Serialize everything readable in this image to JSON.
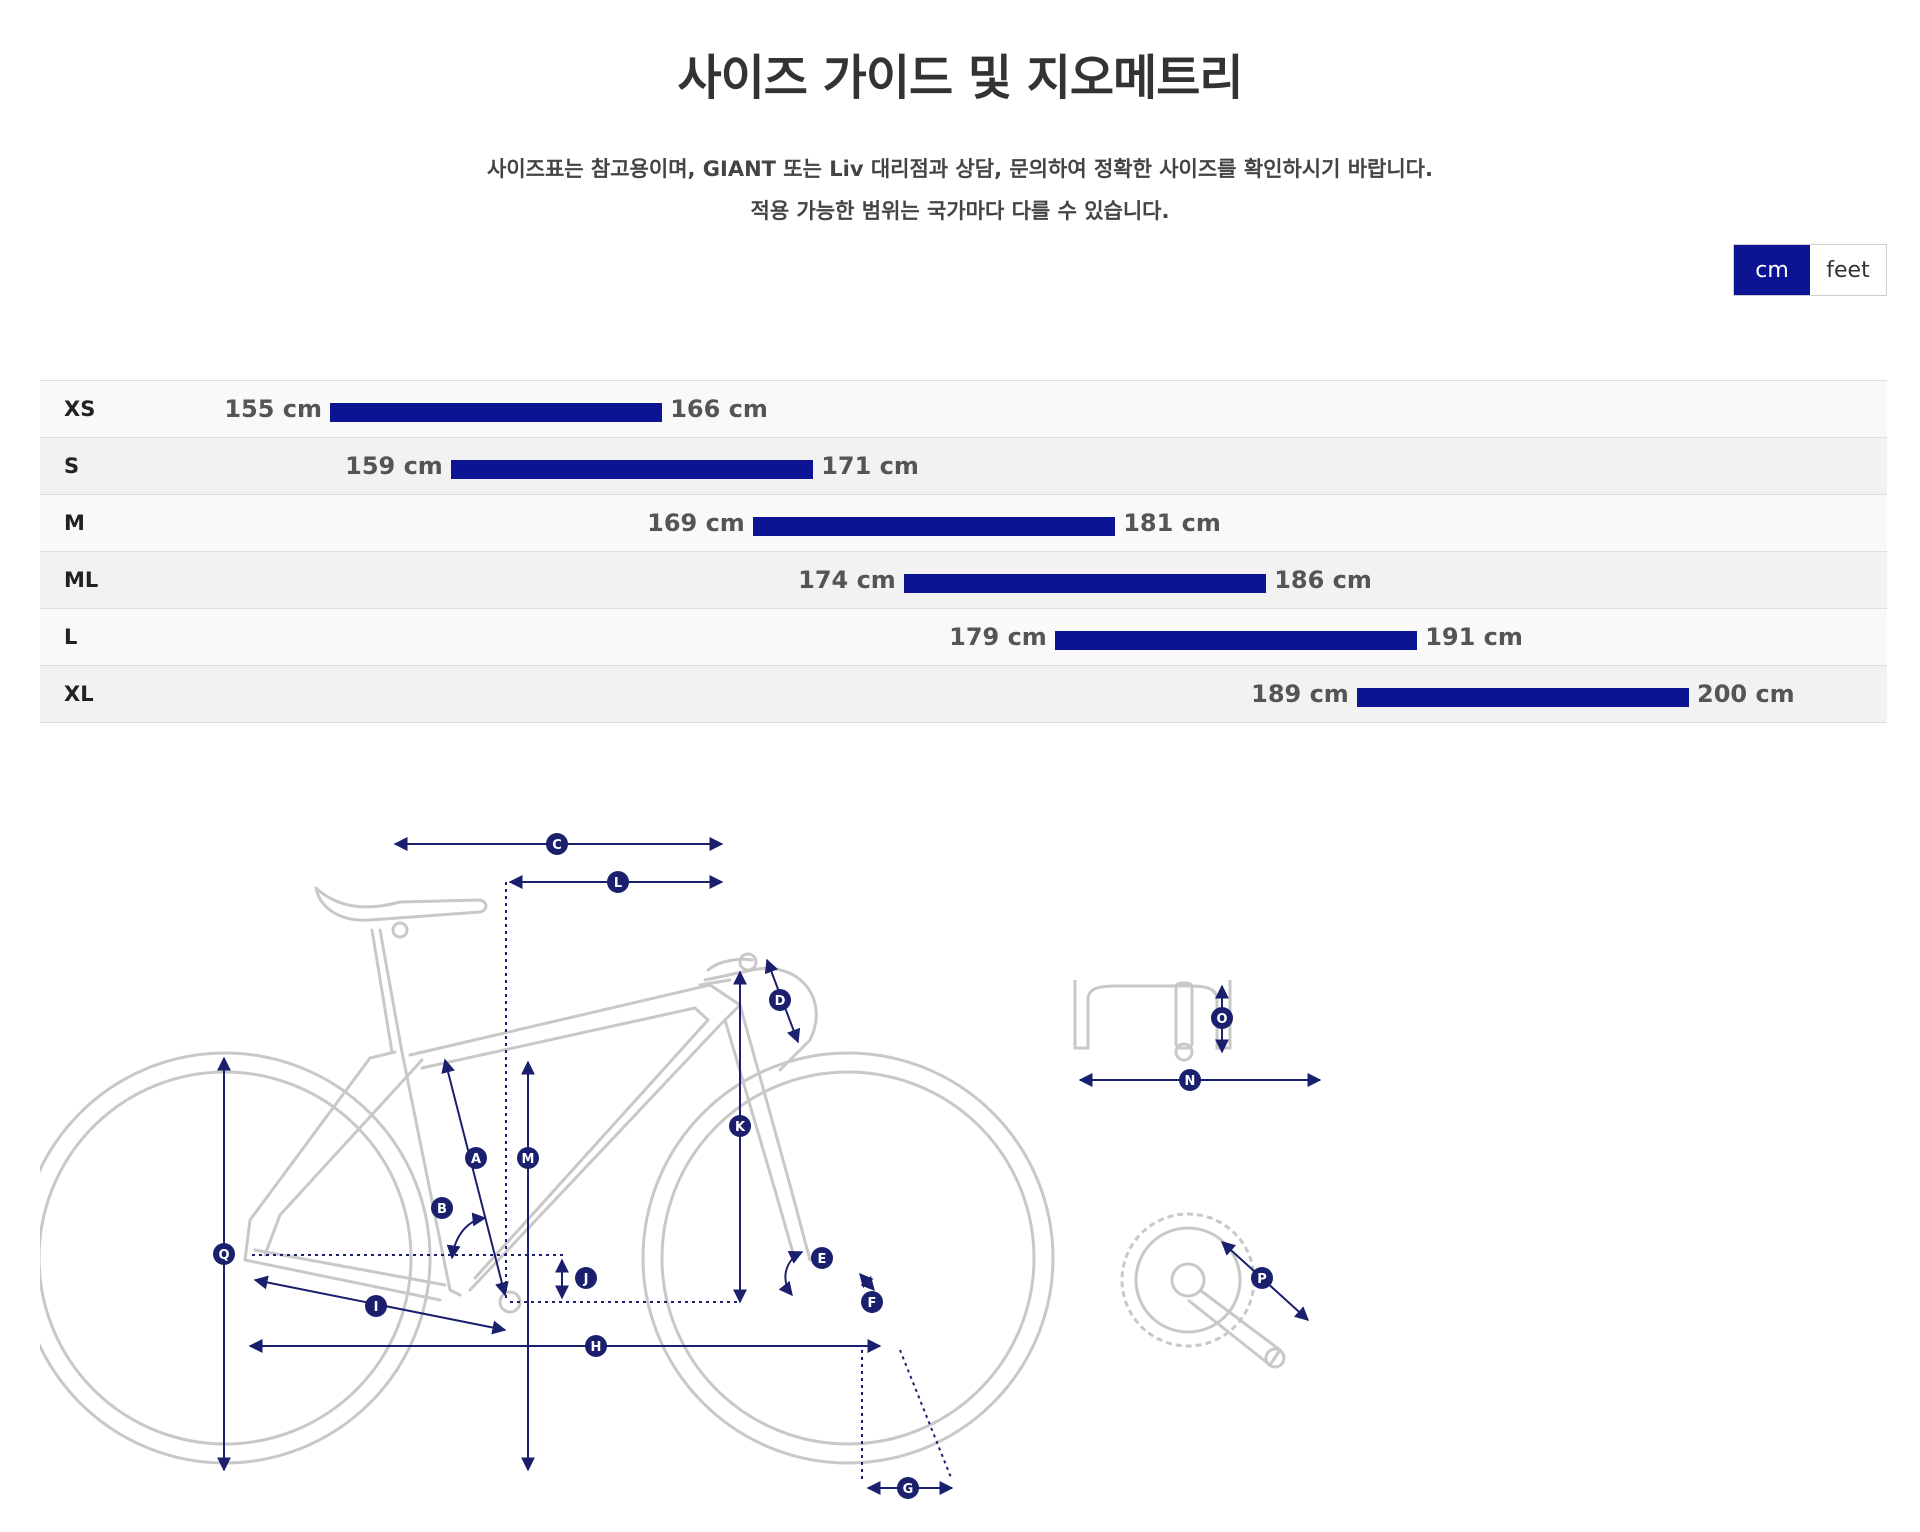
{
  "page": {
    "title": "사이즈 가이드 및 지오메트리",
    "notice_line1": "사이즈표는 참고용이며, GIANT 또는 Liv 대리점과 상담, 문의하여 정확한 사이즈를 확인하시기 바랍니다.",
    "notice_line2": "적용 가능한 범위는 국가마다 다를 수 있습니다."
  },
  "unit_toggle": {
    "options": [
      "cm",
      "feet"
    ],
    "selected": "cm"
  },
  "colors": {
    "accent": "#0c1493",
    "frame_line": "#c8c8c8",
    "dimension_line": "#1a1f6e"
  },
  "size_chart": {
    "unit": "cm",
    "axis_min": 130,
    "axis_max": 220,
    "rows": [
      {
        "size": "XS",
        "min": 155,
        "max": 166,
        "min_label": "155 cm",
        "max_label": "166 cm"
      },
      {
        "size": "S",
        "min": 159,
        "max": 171,
        "min_label": "159 cm",
        "max_label": "171 cm"
      },
      {
        "size": "M",
        "min": 169,
        "max": 181,
        "min_label": "169 cm",
        "max_label": "181 cm"
      },
      {
        "size": "ML",
        "min": 174,
        "max": 186,
        "min_label": "174 cm",
        "max_label": "186 cm"
      },
      {
        "size": "L",
        "min": 179,
        "max": 191,
        "min_label": "179 cm",
        "max_label": "191 cm"
      },
      {
        "size": "XL",
        "min": 189,
        "max": 200,
        "min_label": "189 cm",
        "max_label": "200 cm"
      }
    ]
  },
  "geometry_labels": [
    "A",
    "B",
    "C",
    "D",
    "E",
    "F",
    "G",
    "H",
    "I",
    "J",
    "K",
    "L",
    "M",
    "N",
    "O",
    "P",
    "Q"
  ]
}
